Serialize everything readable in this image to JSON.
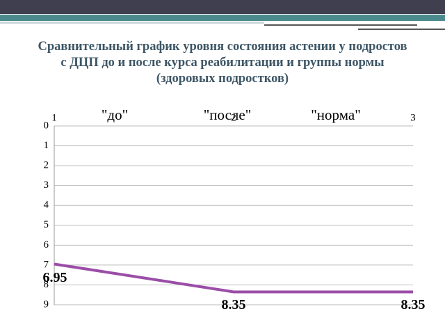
{
  "chart_data": {
    "type": "line",
    "title": "Сравнительный график  уровня состояния астении у подростов с ДЦП до и после курса реабилитации и группы нормы (здоровых подростков)",
    "annotations": [
      "\"до\"",
      "\"после\"",
      "\"норма\""
    ],
    "x": [
      1,
      2,
      3
    ],
    "series": [
      {
        "color": "#9a4ea6",
        "values": [
          6.95,
          8.35,
          8.35
        ]
      }
    ],
    "xlim": [
      1,
      3
    ],
    "xticks": [
      1,
      2,
      3
    ],
    "ylim": [
      0,
      9
    ],
    "yticks": [
      0,
      1,
      2,
      3,
      4,
      5,
      6,
      7,
      8,
      9
    ],
    "y_reversed": true,
    "x_axis_top": true,
    "grid": true,
    "data_labels": true
  }
}
